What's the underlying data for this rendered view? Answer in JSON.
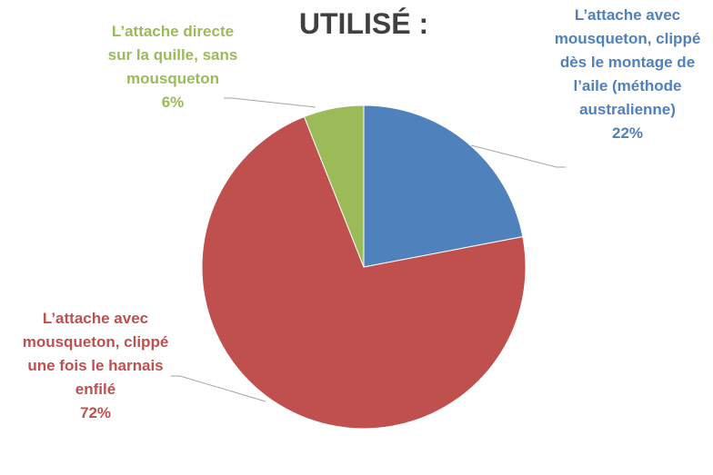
{
  "chart_data": {
    "type": "pie",
    "title": "UTILISÉ :",
    "categories": [
      "L’attache avec mousqueton, clippé dès le montage de l’aile (méthode australienne)",
      "L’attache avec mousqueton, clippé une fois le harnais enfilé",
      "L’attache directe sur la quille, sans mousqueton"
    ],
    "values": [
      22,
      72,
      6
    ],
    "value_labels": [
      "22%",
      "72%",
      "6%"
    ],
    "colors": [
      "#4f81bd",
      "#c0504d",
      "#9bbb59"
    ]
  }
}
